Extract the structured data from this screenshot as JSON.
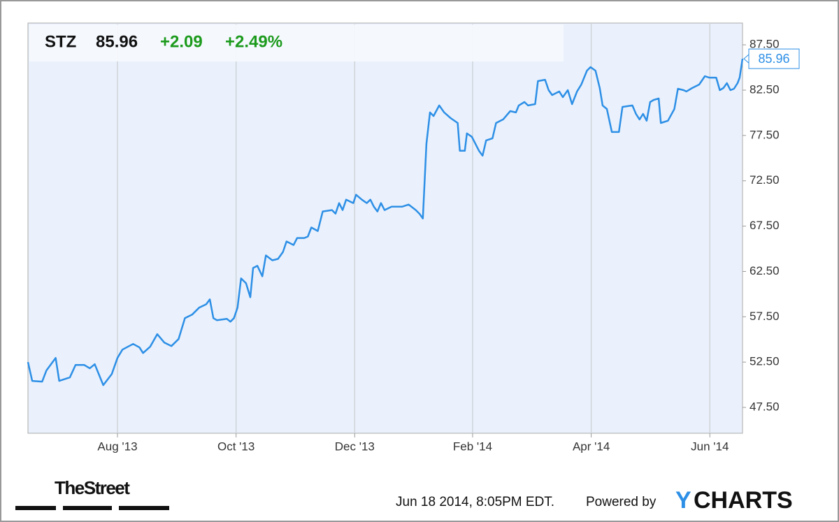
{
  "chart_data": {
    "type": "line",
    "ticker": "STZ",
    "price": "85.96",
    "change": "+2.09",
    "change_pct": "+2.49%",
    "color": "#2d8fe6",
    "grid": "x",
    "xlim": [
      2013.457,
      2014.463
    ],
    "xticks": [
      {
        "value": 2013.583,
        "label": "Aug '13"
      },
      {
        "value": 2013.75,
        "label": "Oct '13"
      },
      {
        "value": 2013.917,
        "label": "Dec '13"
      },
      {
        "value": 2014.083,
        "label": "Feb '14"
      },
      {
        "value": 2014.25,
        "label": "Apr '14"
      },
      {
        "value": 2014.417,
        "label": "Jun '14"
      }
    ],
    "ylim": [
      44.65,
      89.9
    ],
    "yticks": [
      {
        "value": 47.5,
        "label": "47.50"
      },
      {
        "value": 52.5,
        "label": "52.50"
      },
      {
        "value": 57.5,
        "label": "57.50"
      },
      {
        "value": 62.5,
        "label": "62.50"
      },
      {
        "value": 67.5,
        "label": "67.50"
      },
      {
        "value": 72.5,
        "label": "72.50"
      },
      {
        "value": 77.5,
        "label": "77.50"
      },
      {
        "value": 82.5,
        "label": "82.50"
      },
      {
        "value": 87.5,
        "label": "87.50"
      }
    ],
    "x": [
      2013.457,
      2013.463,
      2013.477,
      2013.483,
      2013.496,
      2013.501,
      2013.516,
      2013.524,
      2013.536,
      2013.544,
      2013.551,
      2013.563,
      2013.575,
      2013.583,
      2013.59,
      2013.605,
      2013.614,
      2013.619,
      2013.629,
      2013.639,
      2013.649,
      2013.659,
      2013.669,
      2013.678,
      2013.688,
      2013.698,
      2013.708,
      2013.713,
      2013.718,
      2013.723,
      2013.737,
      2013.742,
      2013.747,
      2013.752,
      2013.757,
      2013.764,
      2013.77,
      2013.774,
      2013.78,
      2013.787,
      2013.792,
      2013.801,
      2013.809,
      2013.816,
      2013.821,
      2013.831,
      2013.836,
      2013.846,
      2013.851,
      2013.856,
      2013.865,
      2013.872,
      2013.885,
      2013.89,
      2013.895,
      2013.9,
      2013.905,
      2013.915,
      2013.919,
      2013.927,
      2013.934,
      2013.939,
      2013.944,
      2013.949,
      2013.954,
      2013.959,
      2013.969,
      2013.984,
      2013.993,
      2014.003,
      2014.008,
      2014.013,
      2014.018,
      2014.023,
      2014.028,
      2014.036,
      2014.043,
      2014.052,
      2014.062,
      2014.065,
      2014.072,
      2014.075,
      2014.082,
      2014.092,
      2014.097,
      2014.102,
      2014.111,
      2014.116,
      2014.126,
      2014.136,
      2014.144,
      2014.148,
      2014.156,
      2014.161,
      2014.171,
      2014.175,
      2014.185,
      2014.19,
      2014.195,
      2014.205,
      2014.21,
      2014.217,
      2014.223,
      2014.23,
      2014.236,
      2014.244,
      2014.249,
      2014.256,
      2014.262,
      2014.266,
      2014.272,
      2014.279,
      2014.289,
      2014.294,
      2014.308,
      2014.313,
      2014.318,
      2014.323,
      2014.328,
      2014.333,
      2014.338,
      2014.345,
      2014.348,
      2014.358,
      2014.367,
      2014.372,
      2014.38,
      2014.384,
      2014.392,
      2014.402,
      2014.41,
      2014.416,
      2014.426,
      2014.431,
      2014.436,
      2014.441,
      2014.446,
      2014.451,
      2014.456,
      2014.459,
      2014.463
    ],
    "values": [
      52.5,
      50.42,
      50.35,
      51.58,
      52.96,
      50.42,
      50.81,
      52.19,
      52.19,
      51.81,
      52.27,
      49.96,
      51.19,
      52.96,
      53.88,
      54.5,
      54.12,
      53.5,
      54.19,
      55.58,
      54.65,
      54.27,
      55.04,
      57.35,
      57.73,
      58.5,
      58.88,
      59.42,
      57.35,
      57.12,
      57.27,
      56.96,
      57.35,
      58.5,
      61.73,
      61.19,
      59.65,
      62.88,
      63.12,
      61.96,
      64.27,
      63.73,
      63.88,
      64.65,
      65.81,
      65.42,
      66.19,
      66.19,
      66.35,
      67.35,
      66.96,
      69.12,
      69.27,
      68.88,
      70.04,
      69.27,
      70.42,
      70.04,
      70.96,
      70.42,
      70.04,
      70.42,
      69.65,
      69.12,
      70.04,
      69.27,
      69.65,
      69.65,
      69.88,
      69.27,
      68.88,
      68.35,
      76.58,
      80.04,
      79.65,
      80.81,
      80.04,
      79.42,
      78.88,
      75.81,
      75.81,
      77.73,
      77.35,
      75.81,
      75.27,
      76.96,
      77.19,
      78.88,
      79.27,
      80.19,
      80.04,
      80.81,
      81.19,
      80.81,
      80.96,
      83.5,
      83.65,
      82.5,
      81.96,
      82.35,
      81.73,
      82.5,
      80.96,
      82.35,
      83.12,
      84.65,
      85.04,
      84.65,
      82.73,
      80.81,
      80.42,
      77.88,
      77.88,
      80.65,
      80.81,
      79.88,
      79.27,
      79.88,
      79.12,
      81.19,
      81.42,
      81.58,
      78.88,
      79.12,
      80.42,
      82.65,
      82.5,
      82.35,
      82.73,
      83.12,
      84.04,
      83.88,
      83.88,
      82.5,
      82.73,
      83.27,
      82.5,
      82.65,
      83.27,
      83.88,
      85.96
    ],
    "footer": {
      "brand": "TheStreet",
      "timestamp": "Jun 18 2014, 8:05PM EDT.",
      "powered": "Powered by",
      "logo_mark": "Y",
      "logo_name": "CHARTS"
    }
  }
}
